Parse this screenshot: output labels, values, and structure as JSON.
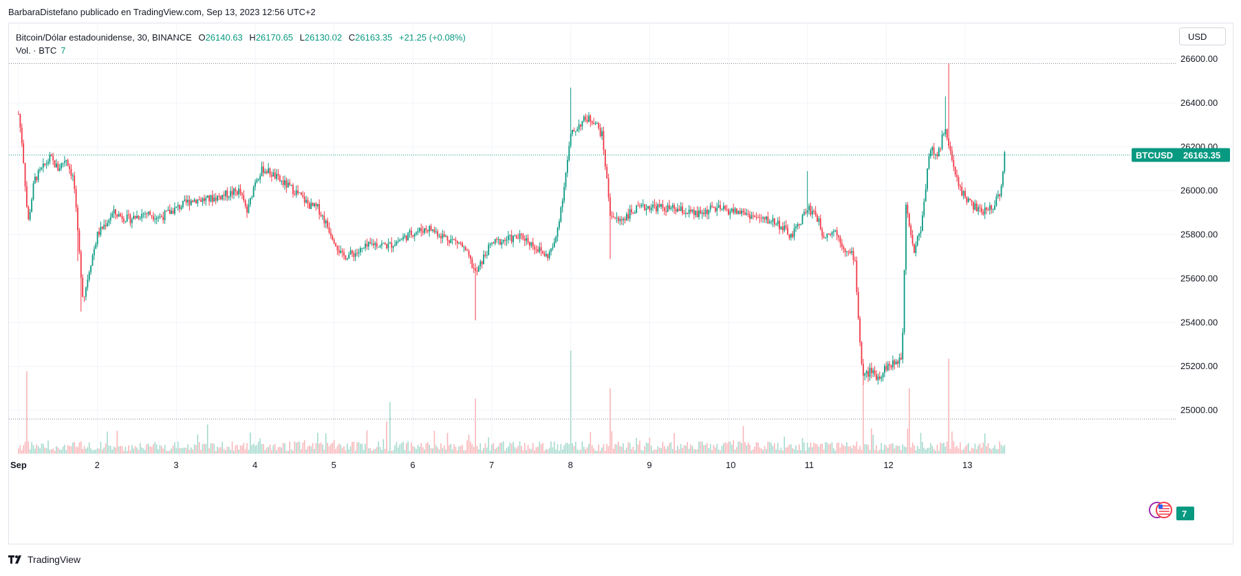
{
  "header": {
    "published_text": "BarbaraDistefano publicado en TradingView.com, Sep 13, 2023 12:56 UTC+2"
  },
  "legend": {
    "symbol_text": "Bitcoin/Dólar estadounidense, 30, BINANCE",
    "open_label": "O",
    "open_value": "26140.63",
    "high_label": "H",
    "high_value": "26170.65",
    "low_label": "L",
    "low_value": "26130.02",
    "close_label": "C",
    "close_value": "26163.35",
    "change_text": "+21.25 (+0.08%)",
    "volume_label": "Vol. · BTC",
    "volume_value": "7"
  },
  "currency_button": "USD",
  "price_tag": {
    "symbol": "BTCUSD",
    "value": "26163.35"
  },
  "volume_tag": "7",
  "footer": {
    "brand": "TradingView"
  },
  "colors": {
    "up": "#089981",
    "down": "#f23645",
    "up_vol": "#a3d9cd",
    "down_vol": "#f8b5b8",
    "grid": "#f0f3fa"
  },
  "chart_data": {
    "type": "candlestick",
    "symbol": "BTCUSD",
    "interval": "30",
    "ylim": [
      24940,
      26720
    ],
    "y_ticks": [
      "26600.00",
      "26400.00",
      "26200.00",
      "26000.00",
      "25800.00",
      "25600.00",
      "25400.00",
      "25200.00",
      "25000.00"
    ],
    "x_tick_labels": [
      "Sep",
      "2",
      "3",
      "4",
      "5",
      "6",
      "7",
      "8",
      "9",
      "10",
      "11",
      "12",
      "13"
    ],
    "x_days": [
      1,
      2,
      3,
      4,
      5,
      6,
      7,
      8,
      9,
      10,
      11,
      12,
      13
    ],
    "close_path": [
      [
        1.0,
        26350
      ],
      [
        1.05,
        26200
      ],
      [
        1.12,
        25850
      ],
      [
        1.2,
        26050
      ],
      [
        1.3,
        26100
      ],
      [
        1.4,
        26150
      ],
      [
        1.5,
        26100
      ],
      [
        1.6,
        26150
      ],
      [
        1.7,
        26050
      ],
      [
        1.75,
        25800
      ],
      [
        1.82,
        25500
      ],
      [
        1.9,
        25650
      ],
      [
        2.0,
        25800
      ],
      [
        2.2,
        25900
      ],
      [
        2.4,
        25870
      ],
      [
        2.6,
        25900
      ],
      [
        2.8,
        25880
      ],
      [
        3.0,
        25920
      ],
      [
        3.2,
        25960
      ],
      [
        3.4,
        25960
      ],
      [
        3.6,
        25980
      ],
      [
        3.8,
        26000
      ],
      [
        3.9,
        25900
      ],
      [
        4.0,
        26050
      ],
      [
        4.1,
        26100
      ],
      [
        4.2,
        26080
      ],
      [
        4.3,
        26050
      ],
      [
        4.5,
        26000
      ],
      [
        4.7,
        25930
      ],
      [
        4.8,
        25920
      ],
      [
        4.9,
        25850
      ],
      [
        5.0,
        25780
      ],
      [
        5.1,
        25700
      ],
      [
        5.3,
        25720
      ],
      [
        5.5,
        25760
      ],
      [
        5.7,
        25750
      ],
      [
        5.9,
        25790
      ],
      [
        6.0,
        25810
      ],
      [
        6.2,
        25830
      ],
      [
        6.4,
        25790
      ],
      [
        6.6,
        25760
      ],
      [
        6.7,
        25700
      ],
      [
        6.8,
        25620
      ],
      [
        6.9,
        25700
      ],
      [
        7.0,
        25760
      ],
      [
        7.2,
        25780
      ],
      [
        7.4,
        25790
      ],
      [
        7.6,
        25730
      ],
      [
        7.7,
        25700
      ],
      [
        7.8,
        25760
      ],
      [
        7.9,
        25980
      ],
      [
        8.0,
        26250
      ],
      [
        8.1,
        26300
      ],
      [
        8.2,
        26330
      ],
      [
        8.3,
        26320
      ],
      [
        8.4,
        26250
      ],
      [
        8.5,
        25900
      ],
      [
        8.6,
        25860
      ],
      [
        8.8,
        25910
      ],
      [
        9.0,
        25930
      ],
      [
        9.2,
        25920
      ],
      [
        9.4,
        25910
      ],
      [
        9.6,
        25890
      ],
      [
        9.8,
        25920
      ],
      [
        10.0,
        25910
      ],
      [
        10.2,
        25900
      ],
      [
        10.4,
        25870
      ],
      [
        10.6,
        25860
      ],
      [
        10.8,
        25790
      ],
      [
        11.0,
        25920
      ],
      [
        11.1,
        25900
      ],
      [
        11.2,
        25800
      ],
      [
        11.35,
        25820
      ],
      [
        11.5,
        25720
      ],
      [
        11.6,
        25700
      ],
      [
        11.65,
        25400
      ],
      [
        11.7,
        25150
      ],
      [
        11.8,
        25180
      ],
      [
        11.9,
        25150
      ],
      [
        12.0,
        25200
      ],
      [
        12.1,
        25210
      ],
      [
        12.2,
        25250
      ],
      [
        12.25,
        25950
      ],
      [
        12.35,
        25720
      ],
      [
        12.45,
        25850
      ],
      [
        12.55,
        26200
      ],
      [
        12.65,
        26150
      ],
      [
        12.75,
        26300
      ],
      [
        12.85,
        26100
      ],
      [
        12.95,
        26000
      ],
      [
        13.05,
        25950
      ],
      [
        13.2,
        25900
      ],
      [
        13.35,
        25930
      ],
      [
        13.45,
        26000
      ],
      [
        13.5,
        26163
      ]
    ],
    "spikes": [
      {
        "day": 1.75,
        "low": 25680
      },
      {
        "day": 1.8,
        "low": 25450
      },
      {
        "day": 6.8,
        "low": 25410
      },
      {
        "day": 8.0,
        "high": 26470
      },
      {
        "day": 8.5,
        "low": 25690
      },
      {
        "day": 11.0,
        "high": 26090
      },
      {
        "day": 11.7,
        "low": 25000
      },
      {
        "day": 12.8,
        "high": 26580
      },
      {
        "day": 12.75,
        "high": 26430
      }
    ],
    "volume_spikes": [
      {
        "day": 1.1,
        "value": 120
      },
      {
        "day": 8.0,
        "value": 150
      },
      {
        "day": 8.5,
        "value": 95
      },
      {
        "day": 11.7,
        "value": 100
      },
      {
        "day": 12.3,
        "value": 95
      },
      {
        "day": 12.8,
        "value": 130
      },
      {
        "day": 6.8,
        "value": 80
      },
      {
        "day": 5.7,
        "value": 75
      }
    ],
    "high_line": 26580,
    "low_line": 24960,
    "last_close": 26163.35
  }
}
